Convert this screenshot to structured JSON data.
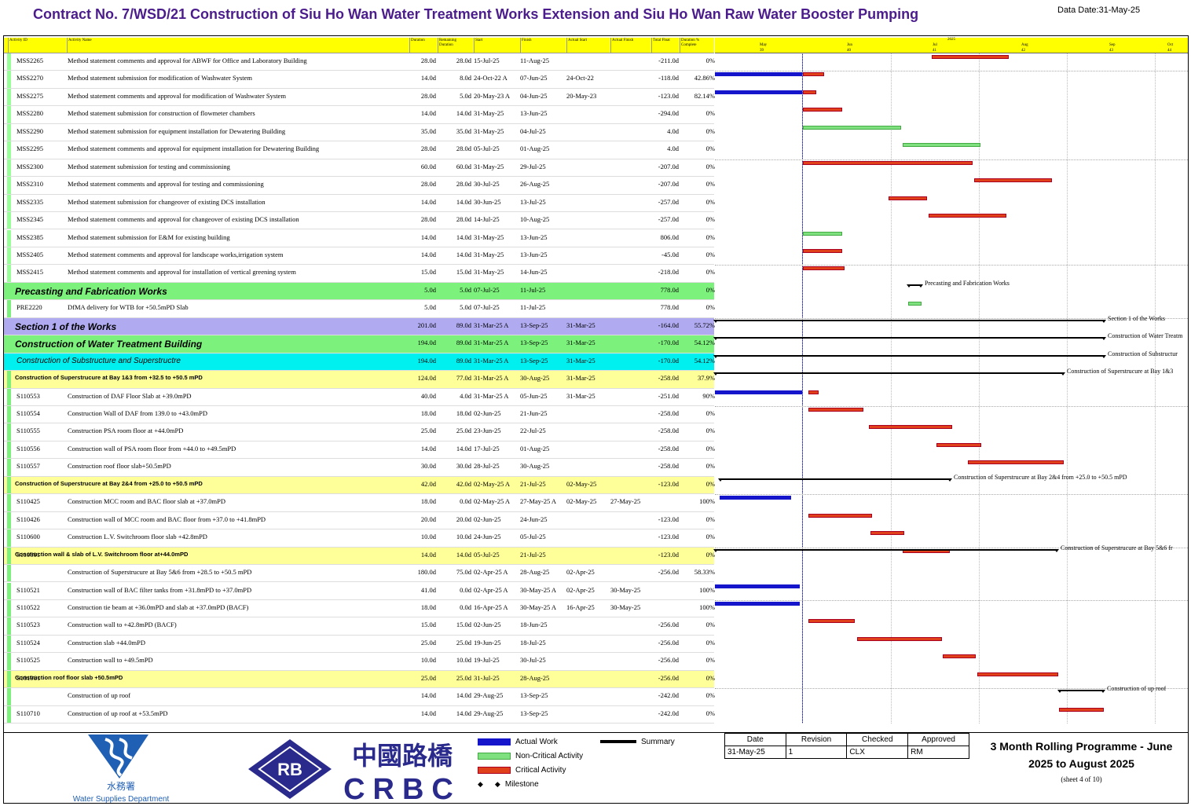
{
  "header": {
    "title": "Contract No. 7/WSD/21 Construction of Siu Ho Wan Water Treatment Works Extension and Siu Ho Wan Raw Water Booster Pumping",
    "data_date": "Data Date:31-May-25"
  },
  "columns": [
    "Activity ID",
    "Activity Name",
    "Duration",
    "Remaining\nDuration",
    "Start",
    "Finish",
    "Actual Start",
    "Actual Finish",
    "Total Float",
    "Duration %\nComplete"
  ],
  "timeline": {
    "year": "2025",
    "months": [
      "May",
      "Jun",
      "Jul",
      "Aug",
      "Sep",
      "Oct"
    ],
    "weeks": [
      "39",
      "40",
      "41",
      "42",
      "43",
      "44"
    ]
  },
  "rows": [
    {
      "id": "MSS2265",
      "name": "Method statement comments and approval for ABWF for Office and Laboratory Building",
      "dur": "28.0d",
      "rem": "28.0d",
      "start": "15-Jul-25",
      "finish": "11-Aug-25",
      "as": "",
      "af": "",
      "tf": "-211.0d",
      "pc": "0%"
    },
    {
      "id": "MSS2270",
      "name": "Method statement submission for modification of Washwater System",
      "dur": "14.0d",
      "rem": "8.0d",
      "start": "24-Oct-22 A",
      "finish": "07-Jun-25",
      "as": "24-Oct-22",
      "af": "",
      "tf": "-118.0d",
      "pc": "42.86%"
    },
    {
      "id": "MSS2275",
      "name": "Method statement comments and approval for modification of Washwater System",
      "dur": "28.0d",
      "rem": "5.0d",
      "start": "20-May-23 A",
      "finish": "04-Jun-25",
      "as": "20-May-23",
      "af": "",
      "tf": "-123.0d",
      "pc": "82.14%"
    },
    {
      "id": "MSS2280",
      "name": "Method statement submission for construction of flowmeter chambers",
      "dur": "14.0d",
      "rem": "14.0d",
      "start": "31-May-25",
      "finish": "13-Jun-25",
      "as": "",
      "af": "",
      "tf": "-294.0d",
      "pc": "0%"
    },
    {
      "id": "MSS2290",
      "name": "Method statement submission for equipment installation for Dewatering Building",
      "dur": "35.0d",
      "rem": "35.0d",
      "start": "31-May-25",
      "finish": "04-Jul-25",
      "as": "",
      "af": "",
      "tf": "4.0d",
      "pc": "0%"
    },
    {
      "id": "MSS2295",
      "name": "Method statement comments and approval for equipment installation for Dewatering Building",
      "dur": "28.0d",
      "rem": "28.0d",
      "start": "05-Jul-25",
      "finish": "01-Aug-25",
      "as": "",
      "af": "",
      "tf": "4.0d",
      "pc": "0%"
    },
    {
      "id": "MSS2300",
      "name": "Method statement submission for testing and commissioning",
      "dur": "60.0d",
      "rem": "60.0d",
      "start": "31-May-25",
      "finish": "29-Jul-25",
      "as": "",
      "af": "",
      "tf": "-207.0d",
      "pc": "0%"
    },
    {
      "id": "MSS2310",
      "name": "Method statement comments and approval for testing and commissioning",
      "dur": "28.0d",
      "rem": "28.0d",
      "start": "30-Jul-25",
      "finish": "26-Aug-25",
      "as": "",
      "af": "",
      "tf": "-207.0d",
      "pc": "0%"
    },
    {
      "id": "MSS2335",
      "name": "Method statement submission for changeover of existing DCS installation",
      "dur": "14.0d",
      "rem": "14.0d",
      "start": "30-Jun-25",
      "finish": "13-Jul-25",
      "as": "",
      "af": "",
      "tf": "-257.0d",
      "pc": "0%"
    },
    {
      "id": "MSS2345",
      "name": "Method statement comments and approval for changeover of existing DCS installation",
      "dur": "28.0d",
      "rem": "28.0d",
      "start": "14-Jul-25",
      "finish": "10-Aug-25",
      "as": "",
      "af": "",
      "tf": "-257.0d",
      "pc": "0%"
    },
    {
      "id": "MSS2385",
      "name": "Method statement submission for E&M for existing building",
      "dur": "14.0d",
      "rem": "14.0d",
      "start": "31-May-25",
      "finish": "13-Jun-25",
      "as": "",
      "af": "",
      "tf": "806.0d",
      "pc": "0%"
    },
    {
      "id": "MSS2405",
      "name": "Method statement comments and approval for landscape works,irrigation system",
      "dur": "14.0d",
      "rem": "14.0d",
      "start": "31-May-25",
      "finish": "13-Jun-25",
      "as": "",
      "af": "",
      "tf": "-45.0d",
      "pc": "0%"
    },
    {
      "id": "MSS2415",
      "name": "Method statement comments and approval for installation of vertical greening system",
      "dur": "15.0d",
      "rem": "15.0d",
      "start": "31-May-25",
      "finish": "14-Jun-25",
      "as": "",
      "af": "",
      "tf": "-218.0d",
      "pc": "0%"
    },
    {
      "id": "",
      "name": "Precasting and Fabrication Works",
      "dur": "5.0d",
      "rem": "5.0d",
      "start": "07-Jul-25",
      "finish": "11-Jul-25",
      "as": "",
      "af": "",
      "tf": "778.0d",
      "pc": "0%"
    },
    {
      "id": "PRE2220",
      "name": "DfMA delivery for WTB for +50.5mPD Slab",
      "dur": "5.0d",
      "rem": "5.0d",
      "start": "07-Jul-25",
      "finish": "11-Jul-25",
      "as": "",
      "af": "",
      "tf": "778.0d",
      "pc": "0%"
    },
    {
      "id": "",
      "name": "Section 1 of the Works",
      "dur": "201.0d",
      "rem": "89.0d",
      "start": "31-Mar-25 A",
      "finish": "13-Sep-25",
      "as": "31-Mar-25",
      "af": "",
      "tf": "-164.0d",
      "pc": "55.72%"
    },
    {
      "id": "",
      "name": "Construction of Water Treatment Building",
      "dur": "194.0d",
      "rem": "89.0d",
      "start": "31-Mar-25 A",
      "finish": "13-Sep-25",
      "as": "31-Mar-25",
      "af": "",
      "tf": "-170.0d",
      "pc": "54.12%"
    },
    {
      "id": "",
      "name": "Construction of Substructure and Superstructre",
      "dur": "194.0d",
      "rem": "89.0d",
      "start": "31-Mar-25 A",
      "finish": "13-Sep-25",
      "as": "31-Mar-25",
      "af": "",
      "tf": "-170.0d",
      "pc": "54.12%"
    },
    {
      "id": "",
      "name": "Construction of Superstrucure at Bay 1&3 from +32.5 to +50.5 mPD",
      "dur": "124.0d",
      "rem": "77.0d",
      "start": "31-Mar-25 A",
      "finish": "30-Aug-25",
      "as": "31-Mar-25",
      "af": "",
      "tf": "-258.0d",
      "pc": "37.9%"
    },
    {
      "id": "S110553",
      "name": "Construction of DAF Floor Slab at +39.0mPD",
      "dur": "40.0d",
      "rem": "4.0d",
      "start": "31-Mar-25 A",
      "finish": "05-Jun-25",
      "as": "31-Mar-25",
      "af": "",
      "tf": "-251.0d",
      "pc": "90%"
    },
    {
      "id": "S110554",
      "name": "Construction Wall of DAF from 139.0 to +43.0mPD",
      "dur": "18.0d",
      "rem": "18.0d",
      "start": "02-Jun-25",
      "finish": "21-Jun-25",
      "as": "",
      "af": "",
      "tf": "-258.0d",
      "pc": "0%"
    },
    {
      "id": "S110555",
      "name": "Construction PSA room floor at +44.0mPD",
      "dur": "25.0d",
      "rem": "25.0d",
      "start": "23-Jun-25",
      "finish": "22-Jul-25",
      "as": "",
      "af": "",
      "tf": "-258.0d",
      "pc": "0%"
    },
    {
      "id": "S110556",
      "name": "Construction wall of PSA room floor from +44.0 to +49.5mPD",
      "dur": "14.0d",
      "rem": "14.0d",
      "start": "17-Jul-25",
      "finish": "01-Aug-25",
      "as": "",
      "af": "",
      "tf": "-258.0d",
      "pc": "0%"
    },
    {
      "id": "S110557",
      "name": "Construction roof floor slab+50.5mPD",
      "dur": "30.0d",
      "rem": "30.0d",
      "start": "28-Jul-25",
      "finish": "30-Aug-25",
      "as": "",
      "af": "",
      "tf": "-258.0d",
      "pc": "0%"
    },
    {
      "id": "",
      "name": "Construction of Superstrucure at Bay 2&4 from +25.0 to +50.5 mPD",
      "dur": "42.0d",
      "rem": "42.0d",
      "start": "02-May-25 A",
      "finish": "21-Jul-25",
      "as": "02-May-25",
      "af": "",
      "tf": "-123.0d",
      "pc": "0%"
    },
    {
      "id": "S110425",
      "name": "Construction MCC room and BAC floor slab at +37.0mPD",
      "dur": "18.0d",
      "rem": "0.0d",
      "start": "02-May-25 A",
      "finish": "27-May-25 A",
      "as": "02-May-25",
      "af": "27-May-25",
      "tf": "",
      "pc": "100%"
    },
    {
      "id": "S110426",
      "name": "Construction wall of MCC room and BAC floor from +37.0 to +41.8mPD",
      "dur": "20.0d",
      "rem": "20.0d",
      "start": "02-Jun-25",
      "finish": "24-Jun-25",
      "as": "",
      "af": "",
      "tf": "-123.0d",
      "pc": "0%"
    },
    {
      "id": "S110600",
      "name": "Construction L.V. Switchroom floor slab +42.8mPD",
      "dur": "10.0d",
      "rem": "10.0d",
      "start": "24-Jun-25",
      "finish": "05-Jul-25",
      "as": "",
      "af": "",
      "tf": "-123.0d",
      "pc": "0%"
    },
    {
      "id": "S110601",
      "name": "Construction wall & slab of L.V. Switchroom floor at+44.0mPD",
      "dur": "14.0d",
      "rem": "14.0d",
      "start": "05-Jul-25",
      "finish": "21-Jul-25",
      "as": "",
      "af": "",
      "tf": "-123.0d",
      "pc": "0%"
    },
    {
      "id": "",
      "name": "Construction of Superstrucure at Bay 5&6  from +28.5 to +50.5 mPD",
      "dur": "180.0d",
      "rem": "75.0d",
      "start": "02-Apr-25 A",
      "finish": "28-Aug-25",
      "as": "02-Apr-25",
      "af": "",
      "tf": "-256.0d",
      "pc": "58.33%"
    },
    {
      "id": "S110521",
      "name": "Construction wall of BAC filter tanks from +31.8mPD to +37.0mPD",
      "dur": "41.0d",
      "rem": "0.0d",
      "start": "02-Apr-25 A",
      "finish": "30-May-25 A",
      "as": "02-Apr-25",
      "af": "30-May-25",
      "tf": "",
      "pc": "100%"
    },
    {
      "id": "S110522",
      "name": "Construction tie beam at +36.0mPD and slab at +37.0mPD (BACF)",
      "dur": "18.0d",
      "rem": "0.0d",
      "start": "16-Apr-25 A",
      "finish": "30-May-25 A",
      "as": "16-Apr-25",
      "af": "30-May-25",
      "tf": "",
      "pc": "100%"
    },
    {
      "id": "S110523",
      "name": "Construction wall to +42.8mPD (BACF)",
      "dur": "15.0d",
      "rem": "15.0d",
      "start": "02-Jun-25",
      "finish": "18-Jun-25",
      "as": "",
      "af": "",
      "tf": "-256.0d",
      "pc": "0%"
    },
    {
      "id": "S110524",
      "name": "Construction slab +44.0mPD",
      "dur": "25.0d",
      "rem": "25.0d",
      "start": "19-Jun-25",
      "finish": "18-Jul-25",
      "as": "",
      "af": "",
      "tf": "-256.0d",
      "pc": "0%"
    },
    {
      "id": "S110525",
      "name": "Construction wall to +49.5mPD",
      "dur": "10.0d",
      "rem": "10.0d",
      "start": "19-Jul-25",
      "finish": "30-Jul-25",
      "as": "",
      "af": "",
      "tf": "-256.0d",
      "pc": "0%"
    },
    {
      "id": "S101981",
      "name": "Construction roof floor slab +50.5mPD",
      "dur": "25.0d",
      "rem": "25.0d",
      "start": "31-Jul-25",
      "finish": "28-Aug-25",
      "as": "",
      "af": "",
      "tf": "-256.0d",
      "pc": "0%"
    },
    {
      "id": "",
      "name": "Construction of up roof",
      "dur": "14.0d",
      "rem": "14.0d",
      "start": "29-Aug-25",
      "finish": "13-Sep-25",
      "as": "",
      "af": "",
      "tf": "-242.0d",
      "pc": "0%"
    },
    {
      "id": "S110710",
      "name": "Construction of up roof at +53.5mPD",
      "dur": "14.0d",
      "rem": "14.0d",
      "start": "29-Aug-25",
      "finish": "13-Sep-25",
      "as": "",
      "af": "",
      "tf": "-242.0d",
      "pc": "0%"
    }
  ],
  "gantt_labels": [
    "Precasting and Fabrication Works",
    "Section 1 of the Works",
    "Construction of Water Treatm",
    "Construction of Substructur",
    "Construction of Superstrucure at Bay 1&3",
    "Construction of Superstrucure at Bay 2&4 from +25.0 to +50.5 mPD",
    "Construction of Superstrucure at Bay 5&6  fr",
    "Construction of up roof"
  ],
  "footer": {
    "wsd_chinese": "水務署",
    "wsd_english": "Water Supplies Department",
    "crbc_chinese": "中國路橋",
    "crbc_english": "CRBC",
    "crbc_badge": "RB",
    "legend": {
      "actual": "Actual Work",
      "noncritical": "Non-Critical Activity",
      "critical": "Critical Activity",
      "milestone": "Milestone",
      "summary": "Summary"
    },
    "approval": {
      "headers": [
        "Date",
        "Revision",
        "Checked",
        "Approved"
      ],
      "values": [
        "31-May-25",
        "1",
        "CLX",
        "RM"
      ]
    },
    "programme_title": "3 Month Rolling Programme - June 2025 to August 2025",
    "sheet": "(sheet 4 of 10)"
  },
  "colors": {
    "title": "#4b1c8c",
    "header": "#ffff00",
    "band_green": "#7cf27c",
    "band_purple": "#b0aaf0",
    "band_cyan": "#00f0f0",
    "band_yellow": "#ffff99",
    "actual": "#1515cc",
    "noncritical": "#7fe07f",
    "critical": "#e0401a"
  }
}
